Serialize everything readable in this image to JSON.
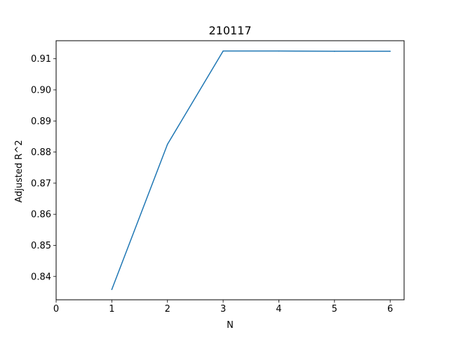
{
  "chart_data": {
    "type": "line",
    "title": "210117",
    "xlabel": "N",
    "ylabel": "Adjusted R^2",
    "x": [
      1,
      2,
      3,
      4,
      5,
      6
    ],
    "series": [
      {
        "values": [
          0.8358,
          0.8825,
          0.9125,
          0.9125,
          0.9124,
          0.9124
        ],
        "color": "#1f77b4"
      }
    ],
    "xlim": [
      0,
      6.25
    ],
    "ylim": [
      0.8325,
      0.9158
    ],
    "xticks": [
      "0",
      "1",
      "2",
      "3",
      "4",
      "5",
      "6"
    ],
    "yticks": [
      "0.84",
      "0.85",
      "0.86",
      "0.87",
      "0.88",
      "0.89",
      "0.90",
      "0.91"
    ],
    "grid": false,
    "legend": "none"
  }
}
